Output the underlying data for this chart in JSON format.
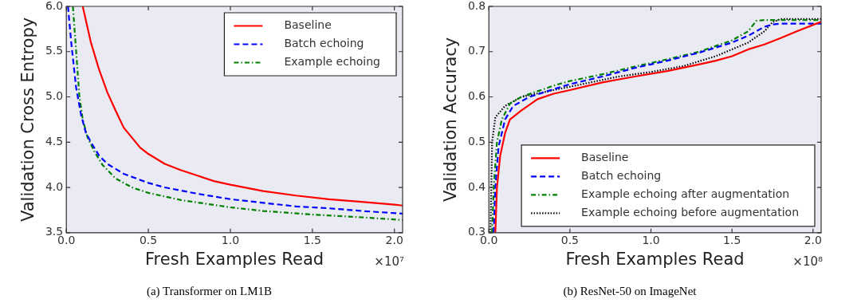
{
  "chart_data": [
    {
      "type": "line",
      "title": "(a) Transformer on LM1B",
      "xlabel": "Fresh Examples Read",
      "ylabel": "Validation Cross Entropy",
      "annotations": [
        "×10⁷"
      ],
      "xlim": [
        0,
        2.05
      ],
      "xticks": [
        {
          "value": 0,
          "label": "0.0"
        },
        {
          "value": 0.5,
          "label": "0.5"
        },
        {
          "value": 1,
          "label": "1.0"
        },
        {
          "value": 1.5,
          "label": "1.5"
        },
        {
          "value": 2,
          "label": "2.0"
        }
      ],
      "ylim": [
        3.5,
        6
      ],
      "yticks": [
        3.5,
        {
          "value": 4,
          "label": "4.0"
        },
        4.5,
        {
          "value": 5,
          "label": "5.0"
        },
        5.5,
        {
          "value": 6,
          "label": "6.0"
        }
      ],
      "grid": false,
      "legend": "top right",
      "marker": "none",
      "series": [
        {
          "name": "Baseline",
          "color": "#ff0000",
          "line_style": "solid",
          "x": [
            0.1,
            0.15,
            0.2,
            0.25,
            0.3,
            0.35,
            0.4,
            0.45,
            0.5,
            0.6,
            0.7,
            0.8,
            0.9,
            1.0,
            1.2,
            1.4,
            1.6,
            1.8,
            2.0,
            2.05
          ],
          "values": [
            6.0,
            5.6,
            5.3,
            5.05,
            4.85,
            4.66,
            4.55,
            4.44,
            4.37,
            4.26,
            4.19,
            4.13,
            4.07,
            4.03,
            3.96,
            3.91,
            3.87,
            3.84,
            3.81,
            3.8
          ]
        },
        {
          "name": "Batch echoing",
          "color": "#0000ff",
          "line_style": "dashed",
          "x": [
            0.01,
            0.03,
            0.06,
            0.09,
            0.12,
            0.15,
            0.2,
            0.25,
            0.35,
            0.5,
            0.6,
            0.8,
            1.0,
            1.2,
            1.4,
            1.6,
            1.8,
            2.05
          ],
          "values": [
            6.0,
            5.6,
            5.1,
            4.8,
            4.6,
            4.5,
            4.35,
            4.26,
            4.15,
            4.05,
            4.0,
            3.93,
            3.87,
            3.83,
            3.79,
            3.77,
            3.74,
            3.71
          ]
        },
        {
          "name": "Example echoing",
          "color": "#008000",
          "line_style": "dashdot",
          "x": [
            0.04,
            0.06,
            0.08,
            0.1,
            0.13,
            0.17,
            0.22,
            0.3,
            0.4,
            0.5,
            0.7,
            1.0,
            1.2,
            1.5,
            1.8,
            2.05
          ],
          "values": [
            6.0,
            5.5,
            5.0,
            4.75,
            4.55,
            4.4,
            4.25,
            4.1,
            4.0,
            3.94,
            3.86,
            3.78,
            3.74,
            3.7,
            3.67,
            3.64
          ]
        }
      ]
    },
    {
      "type": "line",
      "title": "(b) ResNet-50 on ImageNet",
      "xlabel": "Fresh Examples Read",
      "ylabel": "Validation Accuracy",
      "annotations": [
        "×10⁸"
      ],
      "xlim": [
        0,
        2.05
      ],
      "xticks": [
        {
          "value": 0,
          "label": "0.0"
        },
        {
          "value": 0.5,
          "label": "0.5"
        },
        {
          "value": 1,
          "label": "1.0"
        },
        {
          "value": 1.5,
          "label": "1.5"
        },
        {
          "value": 2,
          "label": "2.0"
        }
      ],
      "ylim": [
        0.3,
        0.8
      ],
      "yticks": [
        0.3,
        0.4,
        0.5,
        0.6,
        0.7,
        0.8
      ],
      "grid": false,
      "legend": "bottom right",
      "marker": "none",
      "series": [
        {
          "name": "Baseline",
          "color": "#ff0000",
          "line_style": "solid",
          "x": [
            0.04,
            0.05,
            0.07,
            0.1,
            0.13,
            0.2,
            0.3,
            0.4,
            0.5,
            0.7,
            0.9,
            1.1,
            1.3,
            1.4,
            1.5,
            1.6,
            1.7,
            1.8,
            1.9,
            2.05
          ],
          "values": [
            0.3,
            0.4,
            0.47,
            0.52,
            0.55,
            0.57,
            0.595,
            0.607,
            0.615,
            0.632,
            0.645,
            0.657,
            0.672,
            0.68,
            0.69,
            0.705,
            0.716,
            0.73,
            0.745,
            0.766
          ]
        },
        {
          "name": "Batch echoing",
          "color": "#0000ff",
          "line_style": "dashed",
          "x": [
            0.03,
            0.04,
            0.06,
            0.1,
            0.15,
            0.25,
            0.4,
            0.5,
            0.7,
            0.9,
            1.1,
            1.3,
            1.5,
            1.6,
            1.7,
            1.75,
            1.8,
            2.05
          ],
          "values": [
            0.3,
            0.4,
            0.49,
            0.55,
            0.58,
            0.6,
            0.617,
            0.628,
            0.645,
            0.664,
            0.68,
            0.698,
            0.72,
            0.735,
            0.755,
            0.76,
            0.762,
            0.762
          ]
        },
        {
          "name": "Example echoing after augmentation",
          "color": "#008000",
          "line_style": "dashdot",
          "x": [
            0.02,
            0.03,
            0.05,
            0.08,
            0.13,
            0.2,
            0.4,
            0.5,
            0.7,
            0.9,
            1.1,
            1.3,
            1.5,
            1.6,
            1.65,
            1.7,
            2.05
          ],
          "values": [
            0.3,
            0.4,
            0.5,
            0.55,
            0.585,
            0.6,
            0.625,
            0.635,
            0.65,
            0.667,
            0.683,
            0.7,
            0.725,
            0.745,
            0.768,
            0.77,
            0.77
          ]
        },
        {
          "name": "Example echoing before augmentation",
          "color": "#000000",
          "line_style": "dotted",
          "x": [
            0.01,
            0.015,
            0.02,
            0.04,
            0.1,
            0.2,
            0.4,
            0.6,
            0.8,
            1.0,
            1.2,
            1.4,
            1.5,
            1.6,
            1.7,
            1.75,
            1.8,
            2.05
          ],
          "values": [
            0.3,
            0.4,
            0.5,
            0.555,
            0.58,
            0.6,
            0.615,
            0.63,
            0.645,
            0.655,
            0.668,
            0.69,
            0.705,
            0.72,
            0.745,
            0.765,
            0.772,
            0.772
          ]
        }
      ]
    }
  ]
}
